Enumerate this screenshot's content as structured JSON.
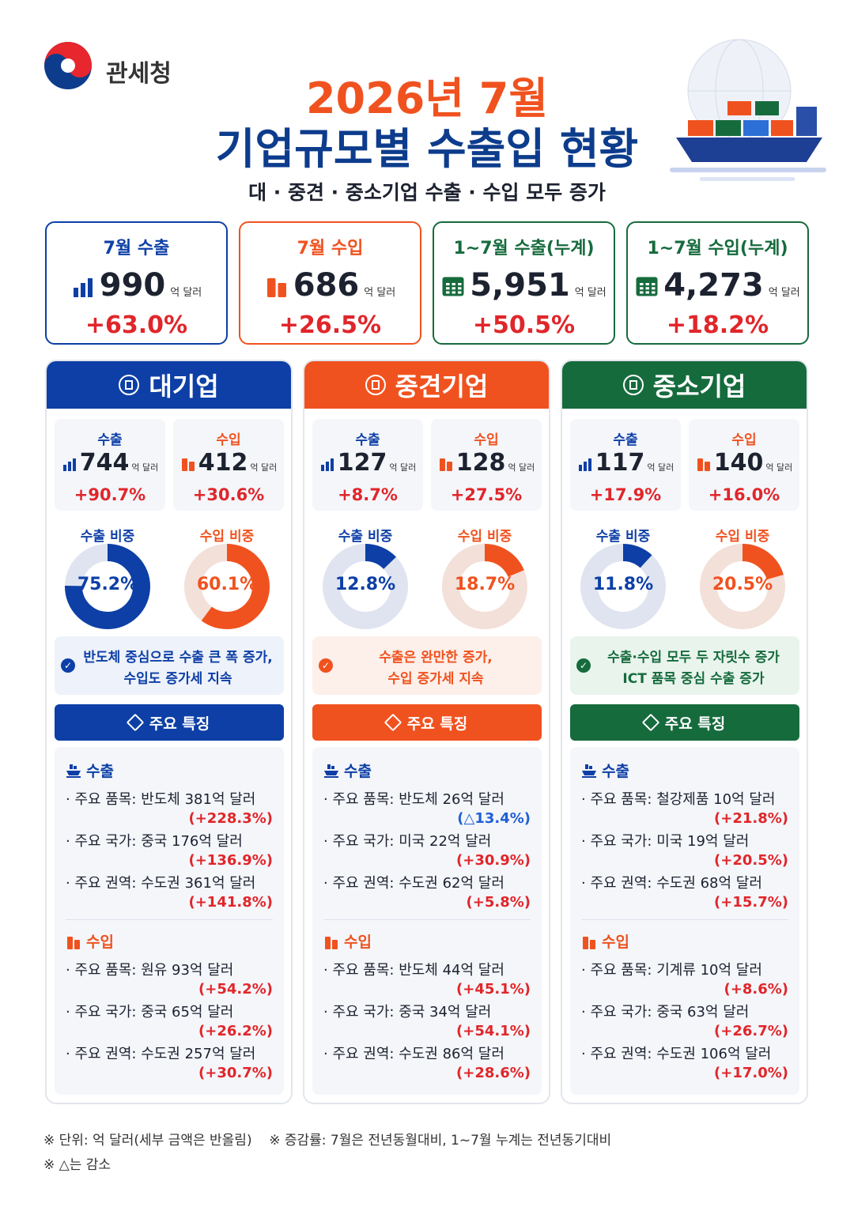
{
  "header": {
    "logo": "관세청",
    "title_line1": "2026년 7월",
    "title_line2": "기업규모별 수출입 현황",
    "subtitle": "대 · 중견 · 중소기업 수출 · 수입 모두 증가"
  },
  "summary": [
    {
      "label": "7월 수출",
      "value": "990",
      "unit": "억 달러",
      "change": "+63.0%"
    },
    {
      "label": "7월 수입",
      "value": "686",
      "unit": "억 달러",
      "change": "+26.5%"
    },
    {
      "label": "1~7월 수출(누계)",
      "value": "5,951",
      "unit": "억 달러",
      "change": "+50.5%"
    },
    {
      "label": "1~7월 수입(누계)",
      "value": "4,273",
      "unit": "억 달러",
      "change": "+18.2%"
    }
  ],
  "segments": [
    {
      "name": "대기업",
      "export": {
        "label": "수출",
        "value": "744",
        "unit": "억 달러",
        "change": "+90.7%"
      },
      "import": {
        "label": "수입",
        "value": "412",
        "unit": "억 달러",
        "change": "+30.6%"
      },
      "export_share": {
        "label": "수출 비중",
        "value": 75.2,
        "text": "75.2%"
      },
      "import_share": {
        "label": "수입 비중",
        "value": 60.1,
        "text": "60.1%"
      },
      "note": [
        "반도체 중심으로 수출 큰 폭 증가,",
        "수입도 증가세 지속"
      ],
      "features_title": "주요 특징",
      "features": [
        {
          "title": "수출",
          "items": [
            {
              "text": "· 주요 품목: 반도체 381억 달러",
              "change": "(+228.3%)"
            },
            {
              "text": "· 주요 국가: 중국 176억 달러",
              "change": "(+136.9%)"
            },
            {
              "text": "· 주요 권역: 수도권 361억 달러",
              "change": "(+141.8%)"
            }
          ]
        },
        {
          "title": "수입",
          "items": [
            {
              "text": "· 주요 품목: 원유 93억 달러",
              "change": "(+54.2%)"
            },
            {
              "text": "· 주요 국가: 중국 65억 달러",
              "change": "(+26.2%)"
            },
            {
              "text": "· 주요 권역: 수도권 257억 달러",
              "change": "(+30.7%)"
            }
          ]
        }
      ]
    },
    {
      "name": "중견기업",
      "export": {
        "label": "수출",
        "value": "127",
        "unit": "억 달러",
        "change": "+8.7%"
      },
      "import": {
        "label": "수입",
        "value": "128",
        "unit": "억 달러",
        "change": "+27.5%"
      },
      "export_share": {
        "label": "수출 비중",
        "value": 12.8,
        "text": "12.8%"
      },
      "import_share": {
        "label": "수입 비중",
        "value": 18.7,
        "text": "18.7%"
      },
      "note": [
        "수출은 완만한 증가,",
        "수입 증가세 지속"
      ],
      "features_title": "주요 특징",
      "features": [
        {
          "title": "수출",
          "items": [
            {
              "text": "· 주요 품목: 반도체 26억 달러",
              "change": "(△13.4%)"
            },
            {
              "text": "· 주요 국가: 미국 22억 달러",
              "change": "(+30.9%)"
            },
            {
              "text": "· 주요 권역: 수도권 62억 달러",
              "change": "(+5.8%)"
            }
          ]
        },
        {
          "title": "수입",
          "items": [
            {
              "text": "· 주요 품목: 반도체 44억 달러",
              "change": "(+45.1%)"
            },
            {
              "text": "· 주요 국가: 중국 34억 달러",
              "change": "(+54.1%)"
            },
            {
              "text": "· 주요 권역: 수도권 86억 달러",
              "change": "(+28.6%)"
            }
          ]
        }
      ]
    },
    {
      "name": "중소기업",
      "export": {
        "label": "수출",
        "value": "117",
        "unit": "억 달러",
        "change": "+17.9%"
      },
      "import": {
        "label": "수입",
        "value": "140",
        "unit": "억 달러",
        "change": "+16.0%"
      },
      "export_share": {
        "label": "수출 비중",
        "value": 11.8,
        "text": "11.8%"
      },
      "import_share": {
        "label": "수입 비중",
        "value": 20.5,
        "text": "20.5%"
      },
      "note": [
        "수출·수입 모두 두 자릿수 증가",
        "ICT 품목 중심 수출 증가"
      ],
      "features_title": "주요 특징",
      "features": [
        {
          "title": "수출",
          "items": [
            {
              "text": "· 주요 품목: 철강제품 10억 달러",
              "change": "(+21.8%)"
            },
            {
              "text": "· 주요 국가: 미국 19억 달러",
              "change": "(+20.5%)"
            },
            {
              "text": "· 주요 권역: 수도권 68억 달러",
              "change": "(+15.7%)"
            }
          ]
        },
        {
          "title": "수입",
          "items": [
            {
              "text": "· 주요 품목: 기계류 10억 달러",
              "change": "(+8.6%)"
            },
            {
              "text": "· 주요 국가: 중국 63억 달러",
              "change": "(+26.7%)"
            },
            {
              "text": "· 주요 권역: 수도권 106억 달러",
              "change": "(+17.0%)"
            }
          ]
        }
      ]
    }
  ],
  "footer": [
    "※ 단위: 억 달러(세부 금액은 반올림)    ※ 증감률: 7월은 전년동월대비, 1~7월 누계는 전년동기대비",
    "※ △는 감소"
  ]
}
